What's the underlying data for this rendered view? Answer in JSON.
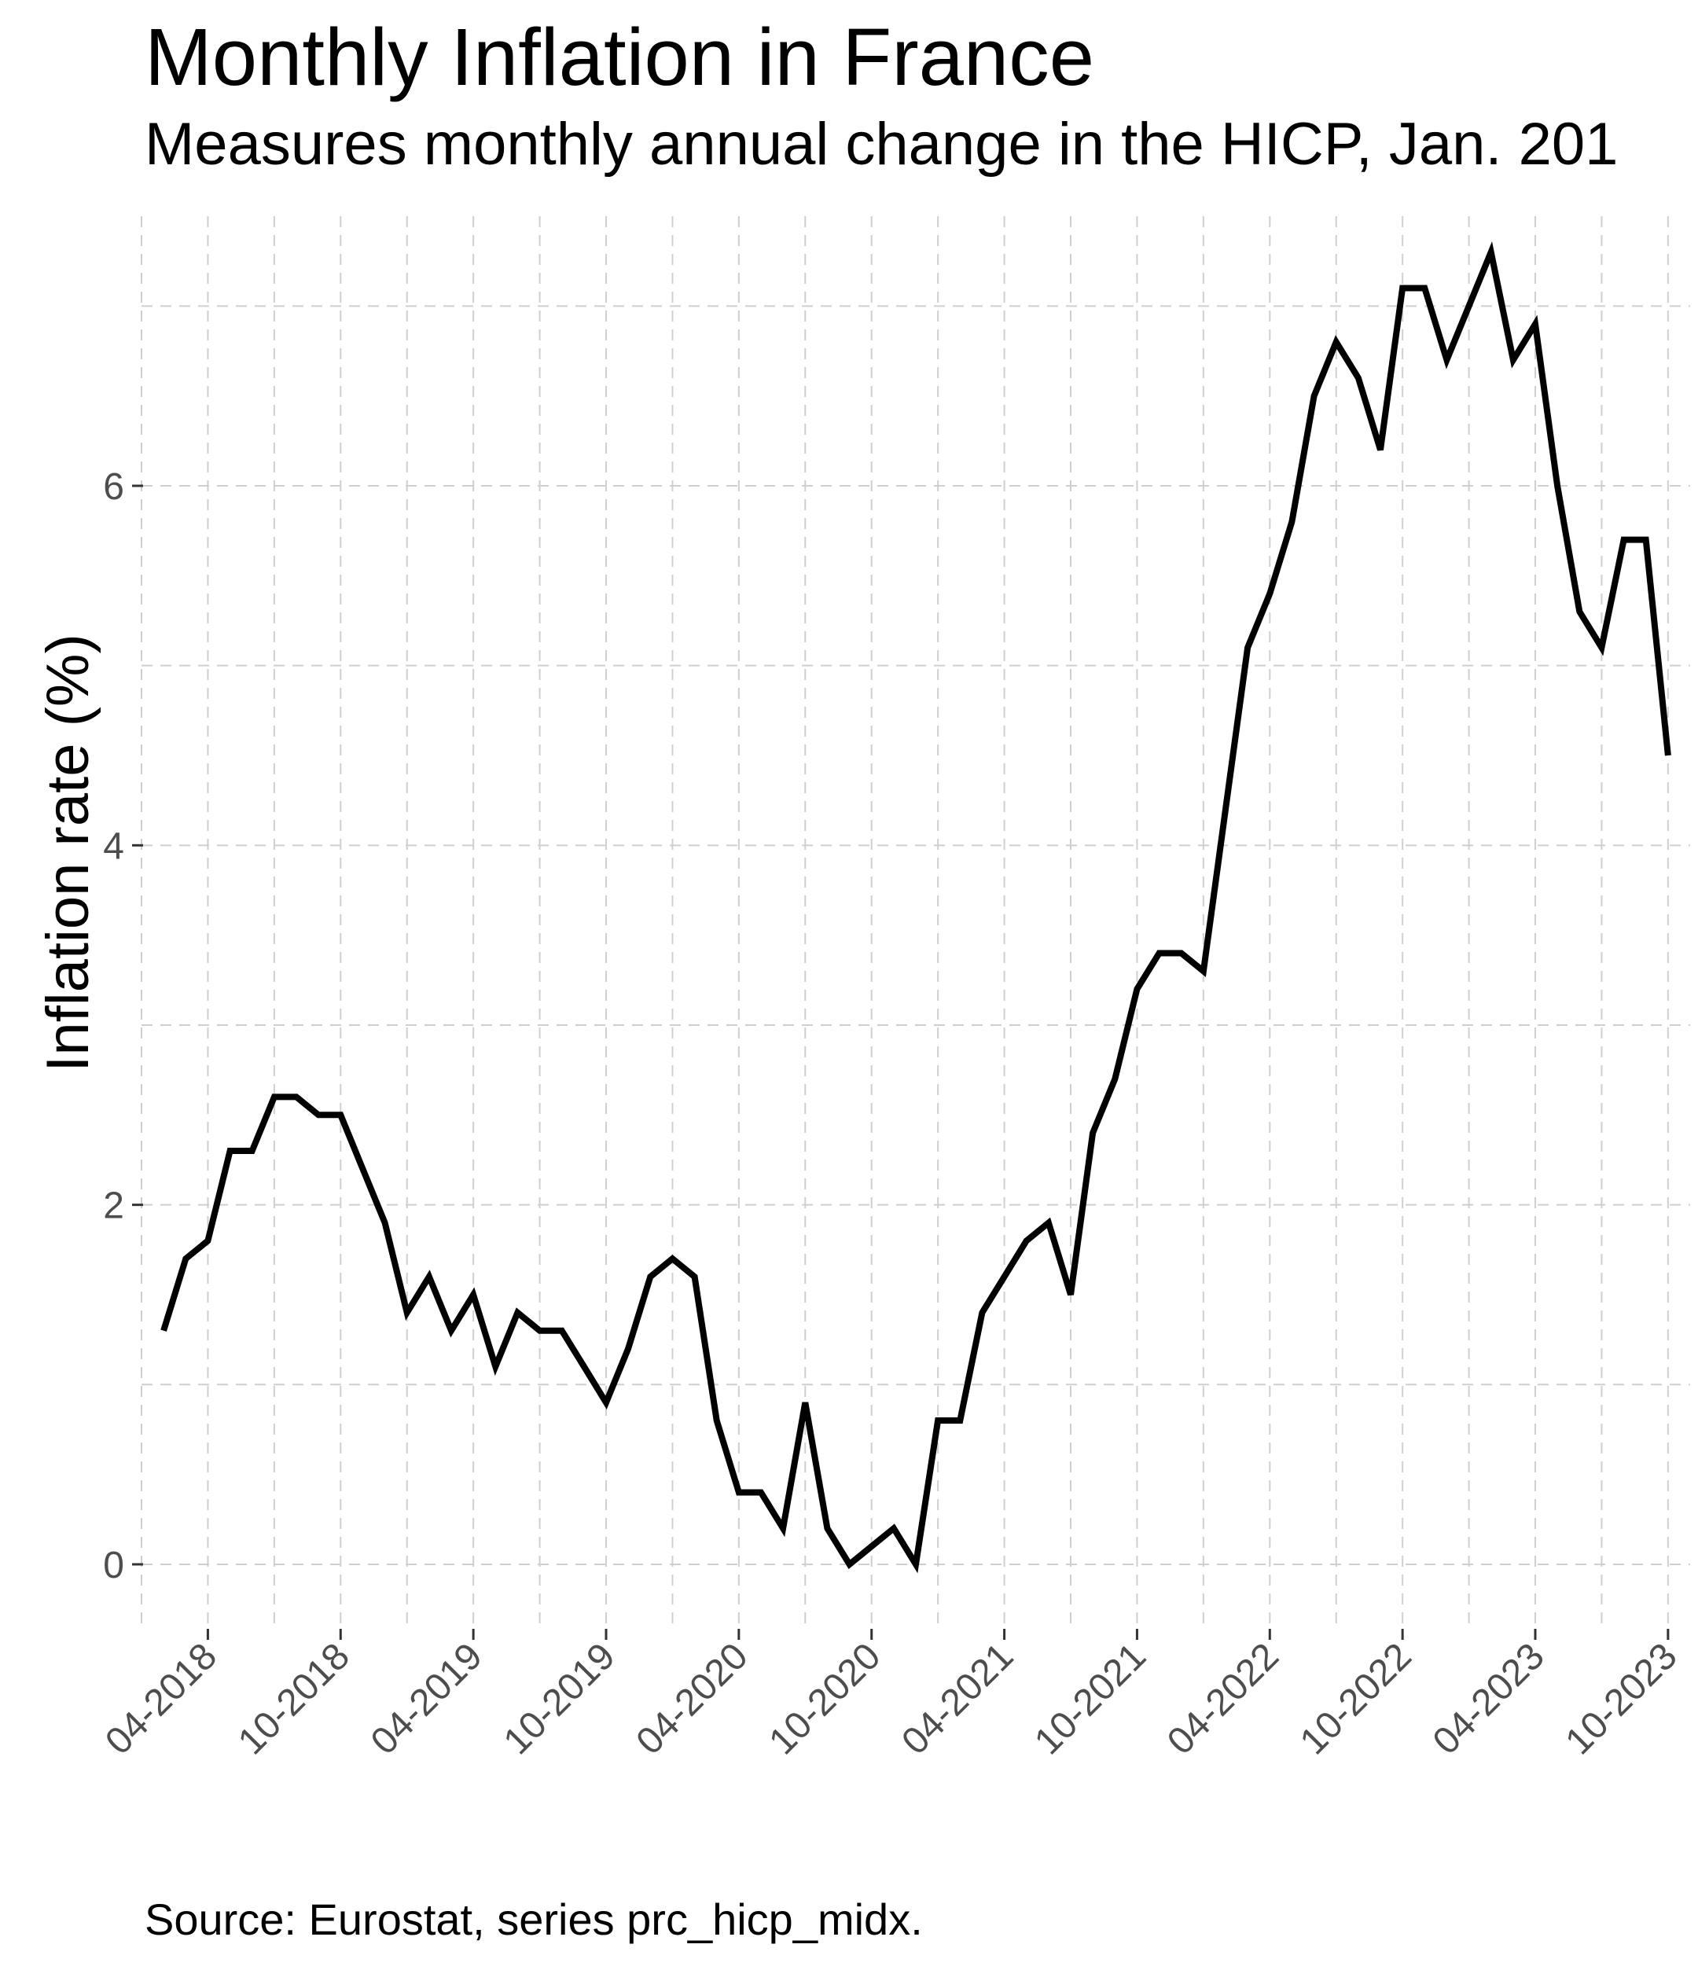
{
  "chart_data": {
    "type": "line",
    "title": "Monthly Inflation in France",
    "subtitle": "Measures monthly annual change in the HICP, Jan. 201",
    "caption": "Source: Eurostat, series prc_hicp_midx.",
    "xlabel": "",
    "ylabel": "Inflation rate (%)",
    "ylim": [
      -0.35,
      7.5
    ],
    "xlim": [
      "2018-01",
      "2023-11"
    ],
    "yticks": [
      0,
      2,
      4,
      6
    ],
    "xticks": [
      "04-2018",
      "10-2018",
      "04-2019",
      "10-2019",
      "04-2020",
      "10-2020",
      "04-2021",
      "10-2021",
      "04-2022",
      "10-2022",
      "04-2023",
      "10-2023"
    ],
    "grid": true,
    "grid_style": "dashed",
    "line_color": "#000000",
    "series": [
      {
        "x": [
          "2018-02",
          "2018-03",
          "2018-04",
          "2018-05",
          "2018-06",
          "2018-07",
          "2018-08",
          "2018-09",
          "2018-10",
          "2018-11",
          "2018-12",
          "2019-01",
          "2019-02",
          "2019-03",
          "2019-04",
          "2019-05",
          "2019-06",
          "2019-07",
          "2019-08",
          "2019-09",
          "2019-10",
          "2019-11",
          "2019-12",
          "2020-01",
          "2020-02",
          "2020-03",
          "2020-04",
          "2020-05",
          "2020-06",
          "2020-07",
          "2020-08",
          "2020-09",
          "2020-10",
          "2020-11",
          "2020-12",
          "2021-01",
          "2021-02",
          "2021-03",
          "2021-04",
          "2021-05",
          "2021-06",
          "2021-07",
          "2021-08",
          "2021-09",
          "2021-10",
          "2021-11",
          "2021-12",
          "2022-01",
          "2022-02",
          "2022-03",
          "2022-04",
          "2022-05",
          "2022-06",
          "2022-07",
          "2022-08",
          "2022-09",
          "2022-10",
          "2022-11",
          "2022-12",
          "2023-01",
          "2023-02",
          "2023-03",
          "2023-04",
          "2023-05",
          "2023-06",
          "2023-07",
          "2023-08",
          "2023-09",
          "2023-10"
        ],
        "values": [
          1.3,
          1.7,
          1.8,
          2.3,
          2.3,
          2.6,
          2.6,
          2.5,
          2.5,
          2.2,
          1.9,
          1.4,
          1.6,
          1.3,
          1.5,
          1.1,
          1.4,
          1.3,
          1.3,
          1.1,
          0.9,
          1.2,
          1.6,
          1.7,
          1.6,
          0.8,
          0.4,
          0.4,
          0.2,
          0.9,
          0.2,
          0.0,
          0.1,
          0.2,
          0.0,
          0.8,
          0.8,
          1.4,
          1.6,
          1.8,
          1.9,
          1.5,
          2.4,
          2.7,
          3.2,
          3.4,
          3.4,
          3.3,
          4.2,
          5.1,
          5.4,
          5.8,
          6.5,
          6.8,
          6.6,
          6.2,
          7.1,
          7.1,
          6.7,
          7.0,
          7.3,
          6.7,
          6.9,
          6.0,
          5.3,
          5.1,
          5.7,
          5.7,
          4.5
        ]
      }
    ]
  }
}
